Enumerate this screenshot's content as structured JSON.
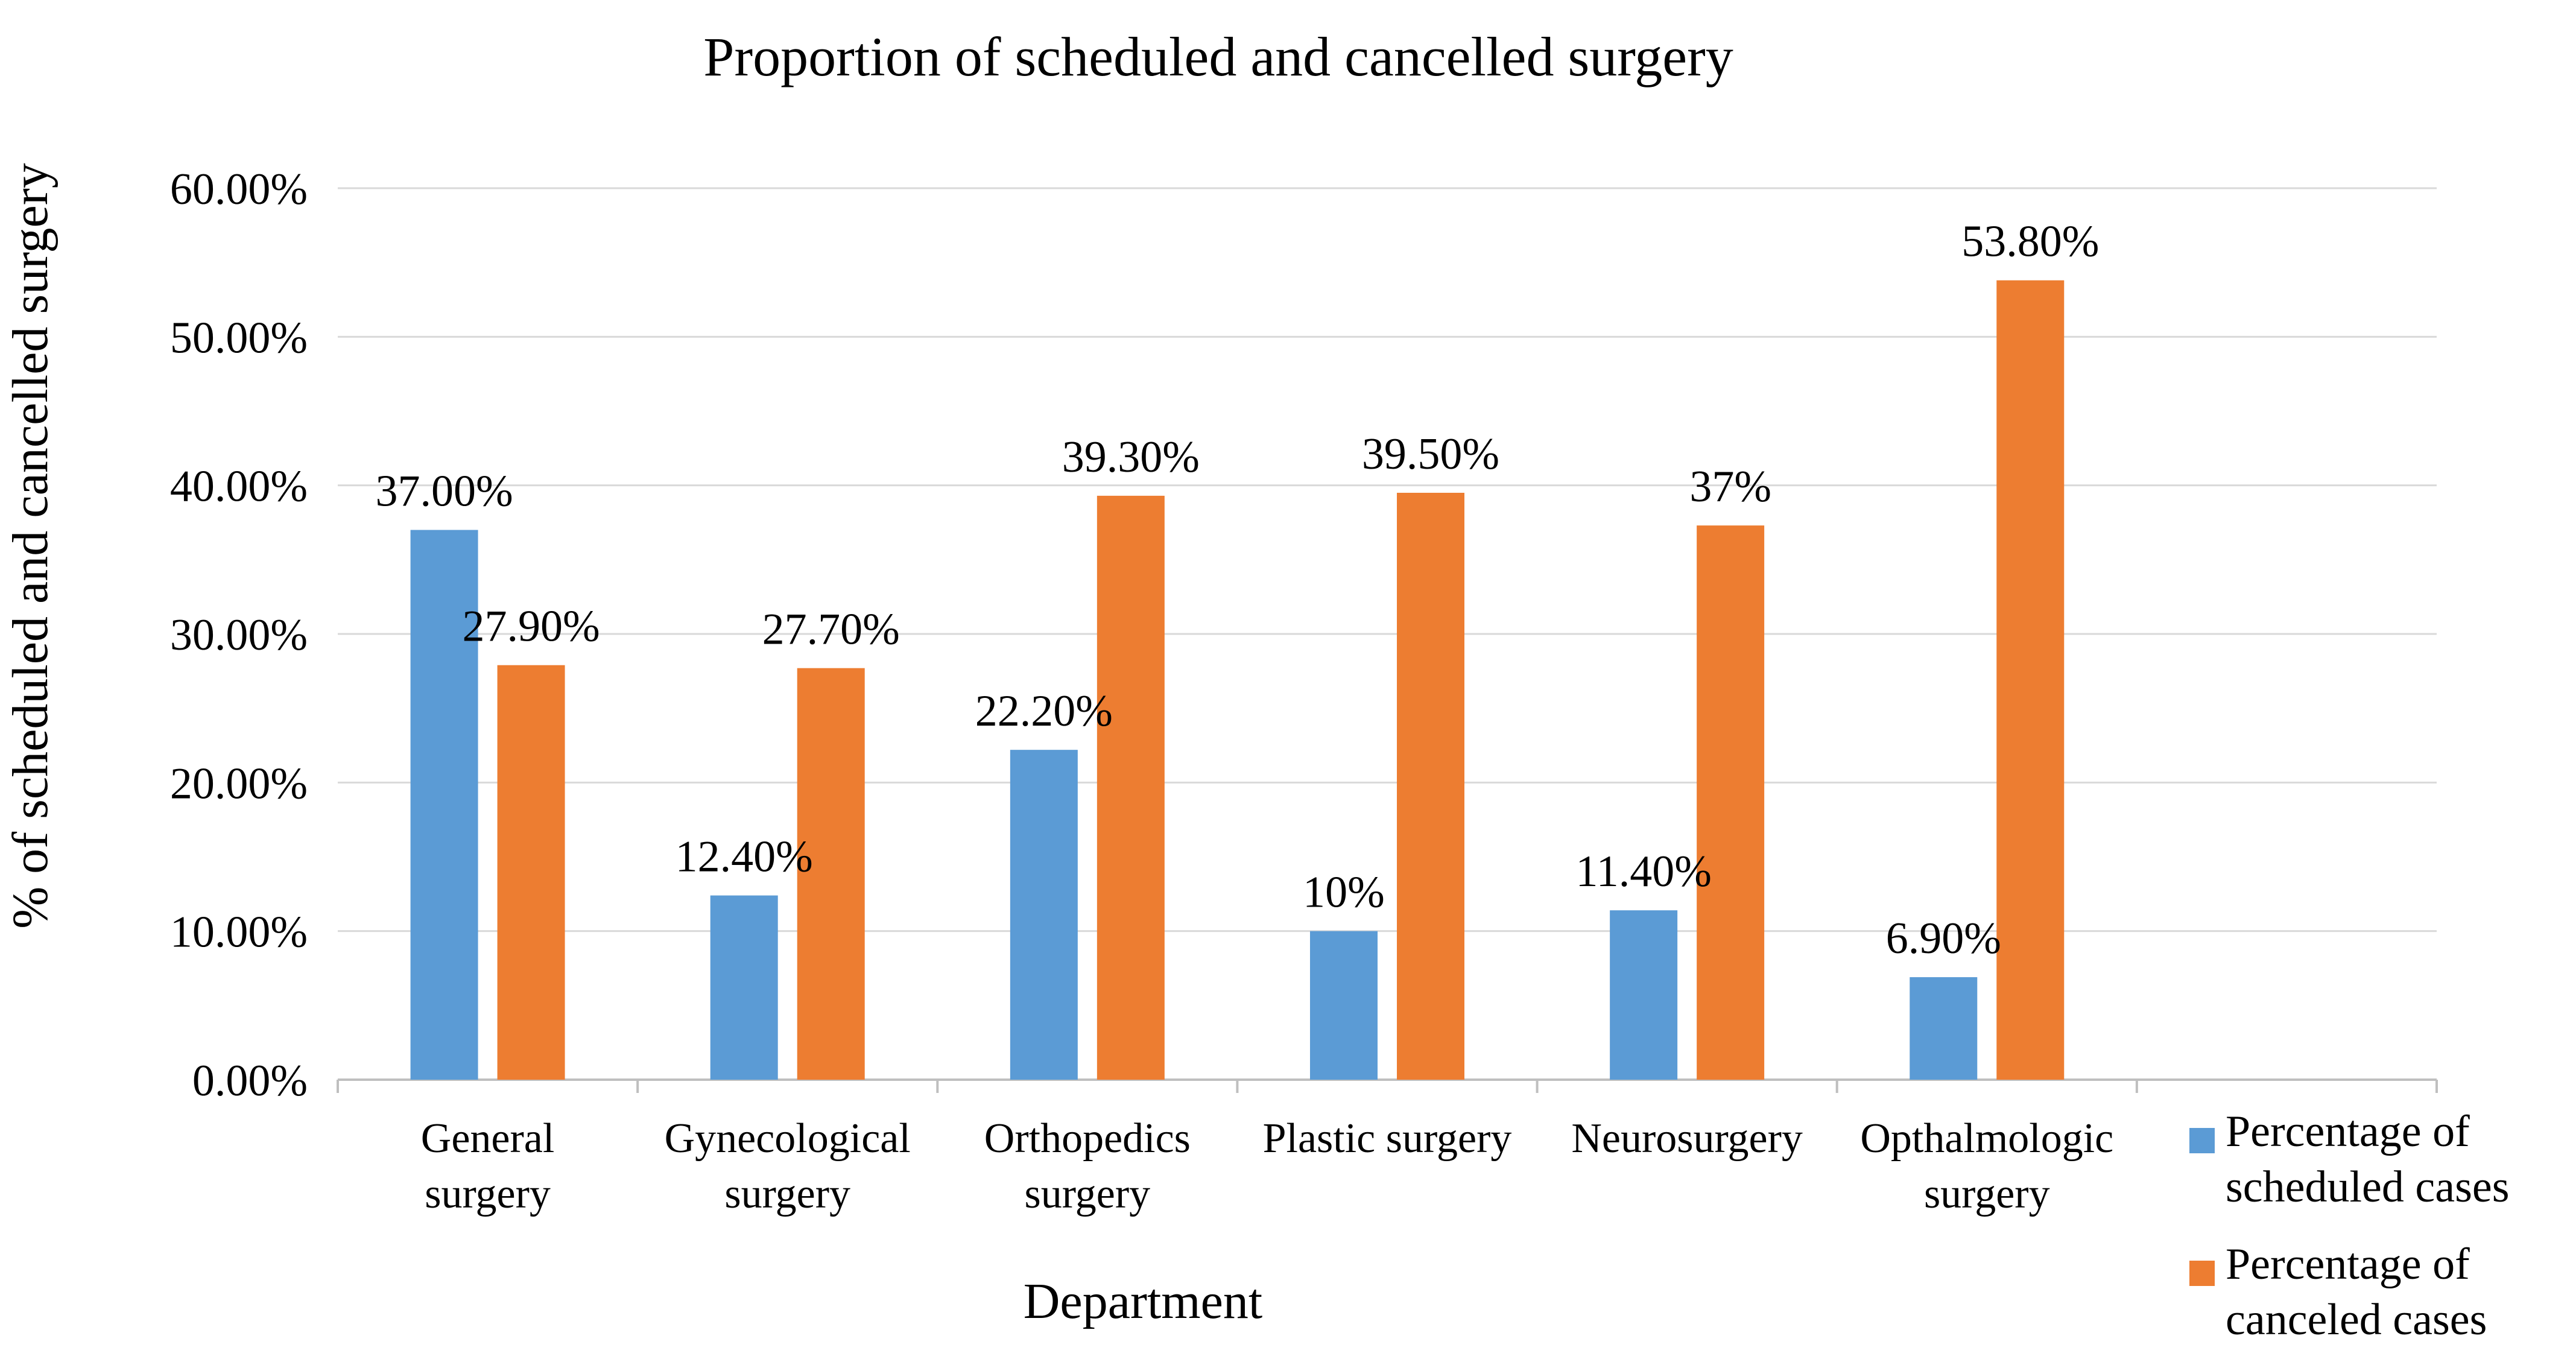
{
  "chart_data": {
    "type": "bar",
    "title": "Proportion of scheduled and cancelled surgery",
    "xlabel": "Department",
    "ylabel": "% of scheduled and cancelled surgery",
    "ylim": [
      0,
      60
    ],
    "yticks": [
      "0.00%",
      "10.00%",
      "20.00%",
      "30.00%",
      "40.00%",
      "50.00%",
      "60.00%"
    ],
    "grid": true,
    "legend_position": "right",
    "categories": [
      [
        "General",
        "surgery"
      ],
      [
        "Gynecological",
        "surgery"
      ],
      [
        "Orthopedics",
        "surgery"
      ],
      [
        "Plastic surgery"
      ],
      [
        "Neurosurgery"
      ],
      [
        "Opthalmologic",
        "surgery"
      ]
    ],
    "series": [
      {
        "name": [
          "Percentage of",
          "scheduled cases"
        ],
        "color": "#5B9BD5",
        "values": [
          37.0,
          12.4,
          22.2,
          10.0,
          11.4,
          6.9
        ],
        "labels": [
          "37.00%",
          "12.40%",
          "22.20%",
          "10%",
          "11.40%",
          "6.90%"
        ]
      },
      {
        "name": [
          "Percentage of",
          "canceled cases"
        ],
        "color": "#ED7D31",
        "values": [
          27.9,
          27.7,
          39.3,
          39.5,
          37.3,
          53.8
        ],
        "labels": [
          "27.90%",
          "27.70%",
          "39.30%",
          "39.50%",
          "37%",
          "53.80%"
        ]
      }
    ]
  }
}
